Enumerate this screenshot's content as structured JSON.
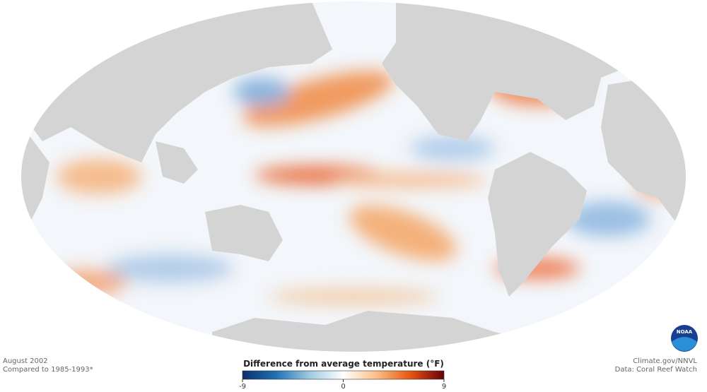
{
  "map": {
    "date": "August 2002",
    "baseline": "Compared to 1985-1993*",
    "credit": "Climate.gov/NNVL",
    "source": "Data: Coral Reef Watch",
    "logo": "NOAA"
  },
  "legend": {
    "title": "Difference from average temperature (°F)",
    "range": [
      -9,
      9
    ],
    "ticks": [
      -9,
      0,
      9
    ],
    "colors": [
      "#08306b",
      "#2171b5",
      "#9ecae1",
      "#ffffff",
      "#fdbe85",
      "#e6550d",
      "#67000d"
    ]
  }
}
